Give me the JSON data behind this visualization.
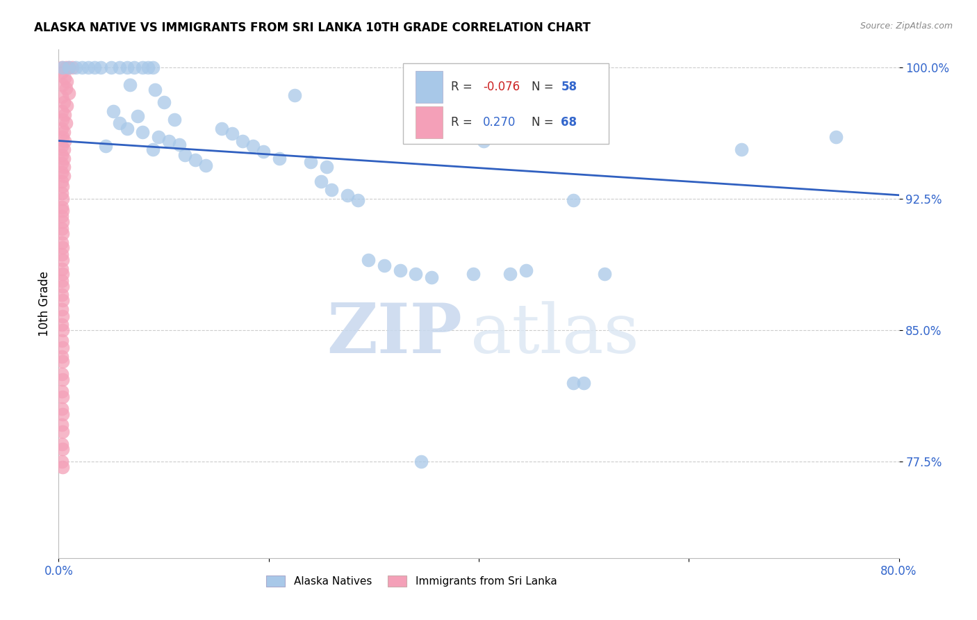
{
  "title": "ALASKA NATIVE VS IMMIGRANTS FROM SRI LANKA 10TH GRADE CORRELATION CHART",
  "source": "Source: ZipAtlas.com",
  "ylabel": "10th Grade",
  "xmin": 0.0,
  "xmax": 0.8,
  "ymin": 0.72,
  "ymax": 1.01,
  "yticks": [
    1.0,
    0.925,
    0.85,
    0.775
  ],
  "ytick_labels": [
    "100.0%",
    "92.5%",
    "85.0%",
    "77.5%"
  ],
  "xticks": [
    0.0,
    0.2,
    0.4,
    0.6,
    0.8
  ],
  "xtick_labels": [
    "0.0%",
    "",
    "",
    "",
    "80.0%"
  ],
  "blue_color": "#a8c8e8",
  "pink_color": "#f4a0b8",
  "line_color": "#3060c0",
  "trendline_x": [
    0.0,
    0.8
  ],
  "trendline_y": [
    0.958,
    0.927
  ],
  "alaska_natives": [
    [
      0.004,
      1.0
    ],
    [
      0.01,
      1.0
    ],
    [
      0.016,
      1.0
    ],
    [
      0.022,
      1.0
    ],
    [
      0.028,
      1.0
    ],
    [
      0.034,
      1.0
    ],
    [
      0.04,
      1.0
    ],
    [
      0.05,
      1.0
    ],
    [
      0.058,
      1.0
    ],
    [
      0.065,
      1.0
    ],
    [
      0.072,
      1.0
    ],
    [
      0.08,
      1.0
    ],
    [
      0.085,
      1.0
    ],
    [
      0.09,
      1.0
    ],
    [
      0.068,
      0.99
    ],
    [
      0.092,
      0.987
    ],
    [
      0.1,
      0.98
    ],
    [
      0.052,
      0.975
    ],
    [
      0.075,
      0.972
    ],
    [
      0.11,
      0.97
    ],
    [
      0.058,
      0.968
    ],
    [
      0.065,
      0.965
    ],
    [
      0.08,
      0.963
    ],
    [
      0.095,
      0.96
    ],
    [
      0.105,
      0.958
    ],
    [
      0.115,
      0.956
    ],
    [
      0.045,
      0.955
    ],
    [
      0.09,
      0.953
    ],
    [
      0.12,
      0.95
    ],
    [
      0.13,
      0.947
    ],
    [
      0.14,
      0.944
    ],
    [
      0.155,
      0.965
    ],
    [
      0.165,
      0.962
    ],
    [
      0.175,
      0.958
    ],
    [
      0.185,
      0.955
    ],
    [
      0.195,
      0.952
    ],
    [
      0.21,
      0.948
    ],
    [
      0.225,
      0.984
    ],
    [
      0.24,
      0.946
    ],
    [
      0.255,
      0.943
    ],
    [
      0.25,
      0.935
    ],
    [
      0.26,
      0.93
    ],
    [
      0.275,
      0.927
    ],
    [
      0.285,
      0.924
    ],
    [
      0.295,
      0.89
    ],
    [
      0.31,
      0.887
    ],
    [
      0.325,
      0.884
    ],
    [
      0.34,
      0.882
    ],
    [
      0.355,
      0.88
    ],
    [
      0.395,
      0.882
    ],
    [
      0.405,
      0.958
    ],
    [
      0.43,
      0.882
    ],
    [
      0.445,
      0.884
    ],
    [
      0.49,
      0.924
    ],
    [
      0.49,
      0.82
    ],
    [
      0.5,
      0.82
    ],
    [
      0.345,
      0.775
    ],
    [
      0.52,
      0.882
    ],
    [
      0.65,
      0.953
    ],
    [
      0.74,
      0.96
    ]
  ],
  "sri_lanka": [
    [
      0.003,
      1.0
    ],
    [
      0.007,
      1.0
    ],
    [
      0.01,
      1.0
    ],
    [
      0.013,
      1.0
    ],
    [
      0.003,
      0.997
    ],
    [
      0.006,
      0.994
    ],
    [
      0.008,
      0.992
    ],
    [
      0.004,
      0.99
    ],
    [
      0.007,
      0.988
    ],
    [
      0.01,
      0.985
    ],
    [
      0.003,
      0.983
    ],
    [
      0.005,
      0.98
    ],
    [
      0.008,
      0.978
    ],
    [
      0.003,
      0.975
    ],
    [
      0.006,
      0.973
    ],
    [
      0.004,
      0.97
    ],
    [
      0.007,
      0.968
    ],
    [
      0.003,
      0.965
    ],
    [
      0.005,
      0.963
    ],
    [
      0.004,
      0.96
    ],
    [
      0.006,
      0.958
    ],
    [
      0.003,
      0.955
    ],
    [
      0.005,
      0.953
    ],
    [
      0.003,
      0.95
    ],
    [
      0.005,
      0.948
    ],
    [
      0.003,
      0.945
    ],
    [
      0.005,
      0.943
    ],
    [
      0.003,
      0.94
    ],
    [
      0.005,
      0.938
    ],
    [
      0.003,
      0.935
    ],
    [
      0.004,
      0.932
    ],
    [
      0.003,
      0.928
    ],
    [
      0.004,
      0.925
    ],
    [
      0.003,
      0.92
    ],
    [
      0.004,
      0.918
    ],
    [
      0.003,
      0.915
    ],
    [
      0.004,
      0.912
    ],
    [
      0.003,
      0.908
    ],
    [
      0.004,
      0.905
    ],
    [
      0.003,
      0.9
    ],
    [
      0.004,
      0.897
    ],
    [
      0.003,
      0.893
    ],
    [
      0.004,
      0.89
    ],
    [
      0.003,
      0.885
    ],
    [
      0.004,
      0.882
    ],
    [
      0.003,
      0.878
    ],
    [
      0.004,
      0.875
    ],
    [
      0.003,
      0.87
    ],
    [
      0.004,
      0.867
    ],
    [
      0.003,
      0.862
    ],
    [
      0.004,
      0.858
    ],
    [
      0.003,
      0.853
    ],
    [
      0.004,
      0.85
    ],
    [
      0.003,
      0.844
    ],
    [
      0.004,
      0.84
    ],
    [
      0.003,
      0.835
    ],
    [
      0.004,
      0.832
    ],
    [
      0.003,
      0.825
    ],
    [
      0.004,
      0.822
    ],
    [
      0.003,
      0.815
    ],
    [
      0.004,
      0.812
    ],
    [
      0.003,
      0.805
    ],
    [
      0.004,
      0.802
    ],
    [
      0.003,
      0.796
    ],
    [
      0.004,
      0.792
    ],
    [
      0.003,
      0.785
    ],
    [
      0.004,
      0.782
    ],
    [
      0.003,
      0.775
    ],
    [
      0.004,
      0.772
    ]
  ],
  "watermark_zip": "ZIP",
  "watermark_atlas": "atlas",
  "background_color": "#ffffff",
  "grid_color": "#cccccc"
}
